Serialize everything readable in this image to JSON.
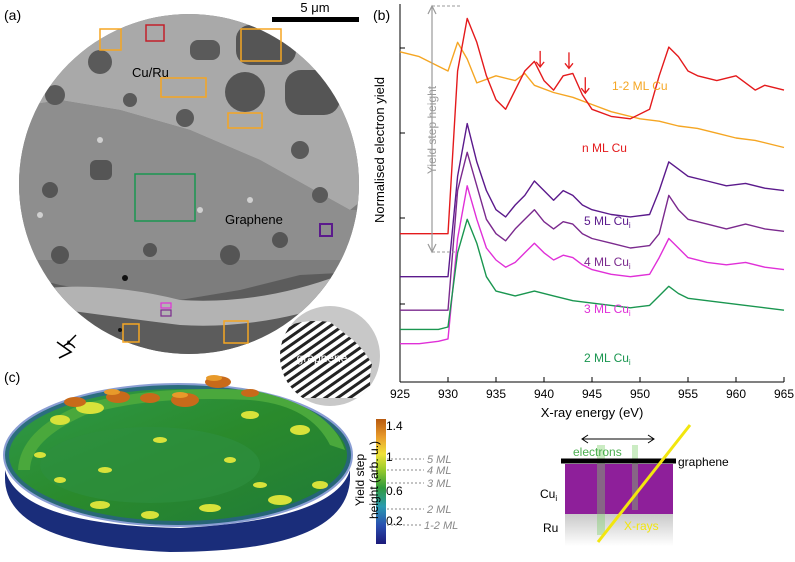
{
  "panels": {
    "a": {
      "label": "(a)",
      "scale_bar": "5 μm",
      "region_cu": "Cu/Ru",
      "region_graphene": "Graphene",
      "inset_label": "graphene"
    },
    "b": {
      "label": "(b)"
    },
    "c": {
      "label": "(c)",
      "colorbar_title_1": "Yield step",
      "colorbar_title_2": "height (arb. u.)",
      "colorbar_ticks": [
        "1.4",
        "1",
        "0.6",
        "0.2"
      ],
      "ml_labels": [
        "5 ML",
        "4 ML",
        "3 ML",
        "2 ML",
        "1-2 ML"
      ]
    },
    "schematic": {
      "electrons": "electrons",
      "graphene": "graphene",
      "cu": "Cu",
      "cu_sub": "i",
      "ru": "Ru",
      "xrays": "X-rays"
    }
  },
  "colors": {
    "n_ml_cu": "#e41a1c",
    "ml_1_2_cu": "#f5a623",
    "ml_5": "#5b1a8c",
    "ml_4": "#7b2a8e",
    "ml_3": "#e030d8",
    "ml_2": "#1a9650",
    "purple_layer": "#8e1f9a",
    "xray": "#f2e60e"
  },
  "chart_data": {
    "type": "line",
    "xlabel": "X-ray energy (eV)",
    "ylabel": "Normalised electron yield",
    "annotation": "Yield step height",
    "xlim": [
      925,
      965
    ],
    "xticks": [
      "925",
      "930",
      "935",
      "940",
      "945",
      "950",
      "955",
      "960",
      "965"
    ],
    "series": [
      {
        "name": "1-2 ML Cu",
        "sub": "",
        "x": [
          925,
          927,
          929,
          930,
          931,
          932,
          933,
          935,
          937,
          938,
          939,
          941,
          943,
          945,
          947,
          950,
          952,
          954,
          956,
          958,
          960,
          962,
          965
        ],
        "y": [
          7.4,
          7.3,
          7.1,
          7.0,
          7.6,
          7.25,
          6.75,
          6.9,
          6.8,
          6.95,
          6.7,
          6.55,
          6.45,
          6.3,
          6.15,
          6.0,
          5.95,
          5.85,
          5.8,
          5.7,
          5.6,
          5.55,
          5.4
        ]
      },
      {
        "name": "n ML Cu",
        "sub": "",
        "x": [
          925,
          927,
          929,
          930,
          931,
          932,
          933,
          934,
          935,
          936,
          937,
          938,
          939,
          940,
          941,
          942,
          943,
          944,
          945,
          947,
          949,
          951,
          952,
          953,
          954,
          955,
          956,
          958,
          960,
          962,
          963,
          965
        ],
        "y": [
          3.6,
          3.6,
          3.6,
          3.6,
          7.0,
          8.1,
          7.6,
          6.9,
          6.4,
          6.2,
          6.6,
          7.0,
          7.2,
          6.8,
          6.6,
          6.9,
          6.95,
          6.5,
          6.2,
          6.05,
          6.0,
          6.2,
          6.9,
          7.5,
          7.3,
          7.0,
          6.9,
          6.8,
          6.9,
          6.6,
          6.7,
          6.6
        ]
      },
      {
        "name": "5 ML Cu",
        "sub": "i",
        "x": [
          925,
          927,
          929,
          930,
          931,
          932,
          933,
          934,
          935,
          936,
          937,
          938,
          939,
          940,
          941,
          942,
          943,
          944,
          945,
          947,
          949,
          951,
          952,
          953,
          954,
          955,
          957,
          959,
          961,
          963,
          965
        ],
        "y": [
          2.7,
          2.7,
          2.7,
          2.7,
          4.8,
          5.9,
          5.1,
          4.5,
          4.1,
          3.95,
          4.2,
          4.4,
          4.7,
          4.5,
          4.3,
          4.5,
          4.4,
          4.2,
          4.1,
          4.0,
          3.95,
          4.0,
          4.5,
          5.1,
          4.95,
          4.8,
          4.7,
          4.6,
          4.65,
          4.55,
          4.5
        ]
      },
      {
        "name": "4 ML Cu",
        "sub": "i",
        "x": [
          925,
          927,
          929,
          930,
          931,
          932,
          933,
          934,
          935,
          936,
          937,
          938,
          939,
          940,
          941,
          942,
          943,
          944,
          945,
          947,
          949,
          951,
          952,
          953,
          954,
          955,
          957,
          959,
          961,
          963,
          965
        ],
        "y": [
          2.0,
          2.0,
          2.0,
          2.0,
          4.5,
          5.3,
          4.6,
          3.9,
          3.6,
          3.45,
          3.7,
          3.9,
          4.1,
          3.85,
          3.7,
          3.85,
          3.8,
          3.6,
          3.5,
          3.4,
          3.3,
          3.35,
          3.6,
          4.4,
          4.1,
          3.9,
          3.8,
          3.7,
          3.8,
          3.7,
          3.65
        ]
      },
      {
        "name": "3 ML Cu",
        "sub": "i",
        "x": [
          925,
          927,
          929,
          930,
          931,
          932,
          933,
          934,
          935,
          936,
          937,
          938,
          939,
          940,
          941,
          942,
          943,
          944,
          945,
          947,
          949,
          951,
          952,
          953,
          954,
          955,
          957,
          959,
          961,
          963,
          965
        ],
        "y": [
          1.3,
          1.3,
          1.35,
          1.4,
          3.5,
          4.6,
          3.9,
          3.3,
          3.05,
          2.9,
          3.0,
          3.2,
          3.4,
          3.2,
          3.05,
          3.15,
          3.1,
          2.95,
          2.85,
          2.75,
          2.7,
          2.75,
          3.1,
          3.5,
          3.3,
          3.1,
          3.0,
          2.95,
          3.0,
          2.9,
          2.85
        ]
      },
      {
        "name": "2 ML Cu",
        "sub": "i",
        "x": [
          925,
          927,
          929,
          930,
          931,
          932,
          933,
          934,
          935,
          937,
          939,
          941,
          943,
          945,
          947,
          949,
          951,
          952,
          953,
          954,
          955,
          957,
          959,
          961,
          963,
          965
        ],
        "y": [
          1.6,
          1.6,
          1.6,
          1.65,
          3.2,
          3.9,
          3.4,
          2.7,
          2.4,
          2.3,
          2.4,
          2.3,
          2.2,
          2.15,
          2.1,
          2.05,
          2.1,
          2.3,
          2.5,
          2.35,
          2.25,
          2.2,
          2.15,
          2.1,
          2.05,
          2.0
        ]
      }
    ],
    "arrow_energies": [
      939.6,
      942.6,
      944.3
    ]
  }
}
